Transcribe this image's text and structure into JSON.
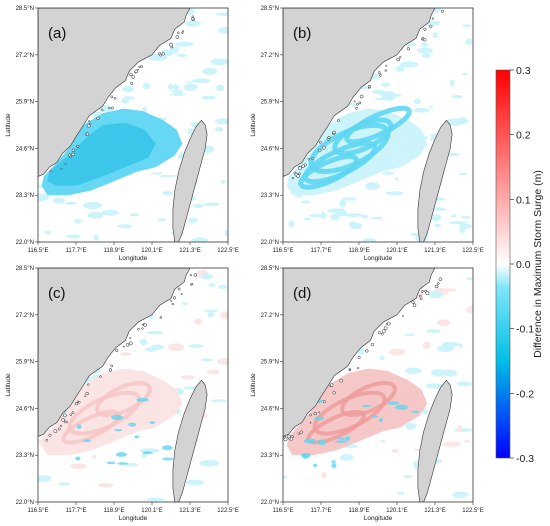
{
  "figure": {
    "panels": [
      {
        "label": "(a)",
        "pattern": "negative_broad"
      },
      {
        "label": "(b)",
        "pattern": "negative_swirl"
      },
      {
        "label": "(c)",
        "pattern": "positive_light"
      },
      {
        "label": "(d)",
        "pattern": "positive_strong"
      }
    ],
    "x_axis": {
      "label": "Longitude",
      "ticks": [
        "116.5°E",
        "117.7°E",
        "118.9°E",
        "120.1°E",
        "121.3°E",
        "122.5°E"
      ]
    },
    "y_axis": {
      "label": "Latitude",
      "ticks": [
        "22.0°N",
        "23.3°N",
        "24.6°N",
        "25.9°N",
        "27.2°N",
        "28.5°N"
      ]
    },
    "colorbar": {
      "label": "Difference in Maximum Storm Surge (m)",
      "ticks": [
        "0.3",
        "0.2",
        "0.1",
        "0.0",
        "-0.1",
        "-0.2",
        "-0.3"
      ],
      "min": -0.3,
      "max": 0.3
    },
    "colors": {
      "land": "#d3d3d3",
      "coastline": "#333333",
      "neg_light": "#c8f3fb",
      "neg_mid": "#5fd6f2",
      "neg_strong": "#1fbde6",
      "pos_light": "#fbe3e3",
      "pos_mid": "#f6c4c4",
      "pos_strong": "#ef9a9a"
    }
  }
}
